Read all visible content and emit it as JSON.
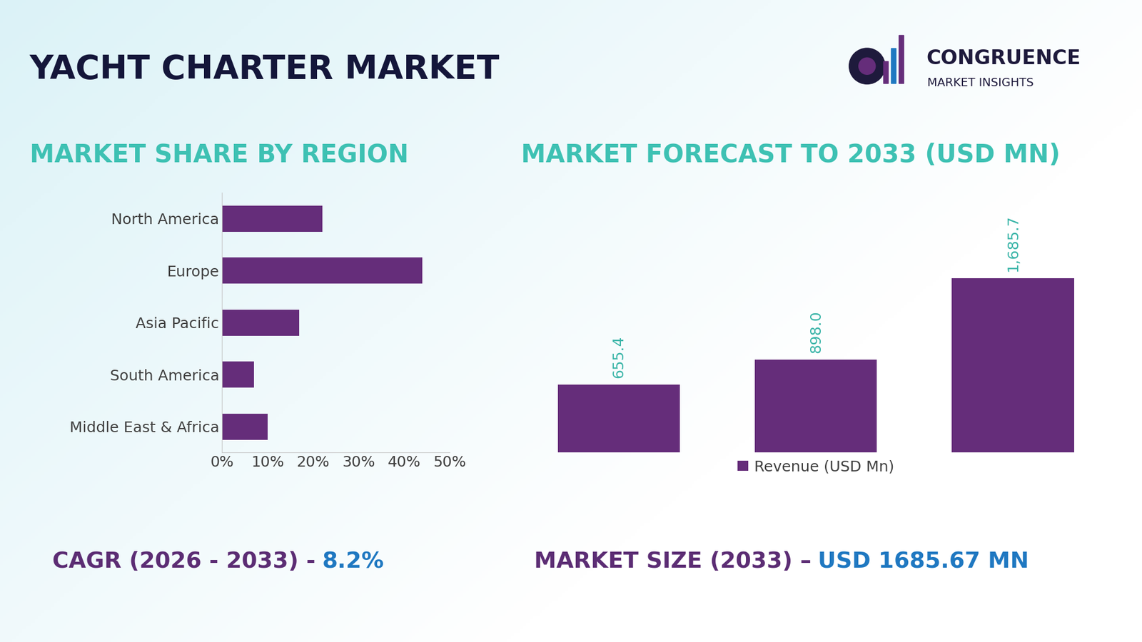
{
  "header": {
    "title": "YACHT CHARTER MARKET",
    "brand": "CONGRUENCE",
    "brand_subtitle": "MARKET INSIGHTS"
  },
  "chart_data": [
    {
      "type": "bar",
      "title": "MARKET SHARE BY REGION",
      "orientation": "horizontal",
      "categories": [
        "North America",
        "Europe",
        "Asia Pacific",
        "South America",
        "Middle East & Africa"
      ],
      "values": [
        22,
        44,
        17,
        7,
        10
      ],
      "color": "#652d7a",
      "xlim": [
        0,
        50
      ],
      "xticks": [
        {
          "value": 0,
          "label": "0%"
        },
        {
          "value": 10,
          "label": "10%"
        },
        {
          "value": 20,
          "label": "20%"
        },
        {
          "value": 30,
          "label": "30%"
        },
        {
          "value": 40,
          "label": "40%"
        },
        {
          "value": 50,
          "label": "50%"
        }
      ],
      "grid": false
    },
    {
      "type": "bar",
      "title": "MARKET FORECAST TO 2033 (USD MN)",
      "categories": [
        null,
        null,
        null
      ],
      "series": [
        {
          "name": "Revenue (USD Mn)",
          "color": "#652d7a",
          "values": [
            655.4,
            898.0,
            1685.7
          ],
          "value_labels": [
            "655.4",
            "898.0",
            "1,685.7"
          ]
        }
      ],
      "data_labels": true,
      "legend": "lower center",
      "tick_labels": false,
      "grid": false
    }
  ],
  "footer": {
    "cagr_label": "CAGR (2026 - 2033) -",
    "cagr_value": "8.2%",
    "size_label": "MARKET SIZE (2033) –",
    "size_value": "USD 1685.67 MN"
  }
}
